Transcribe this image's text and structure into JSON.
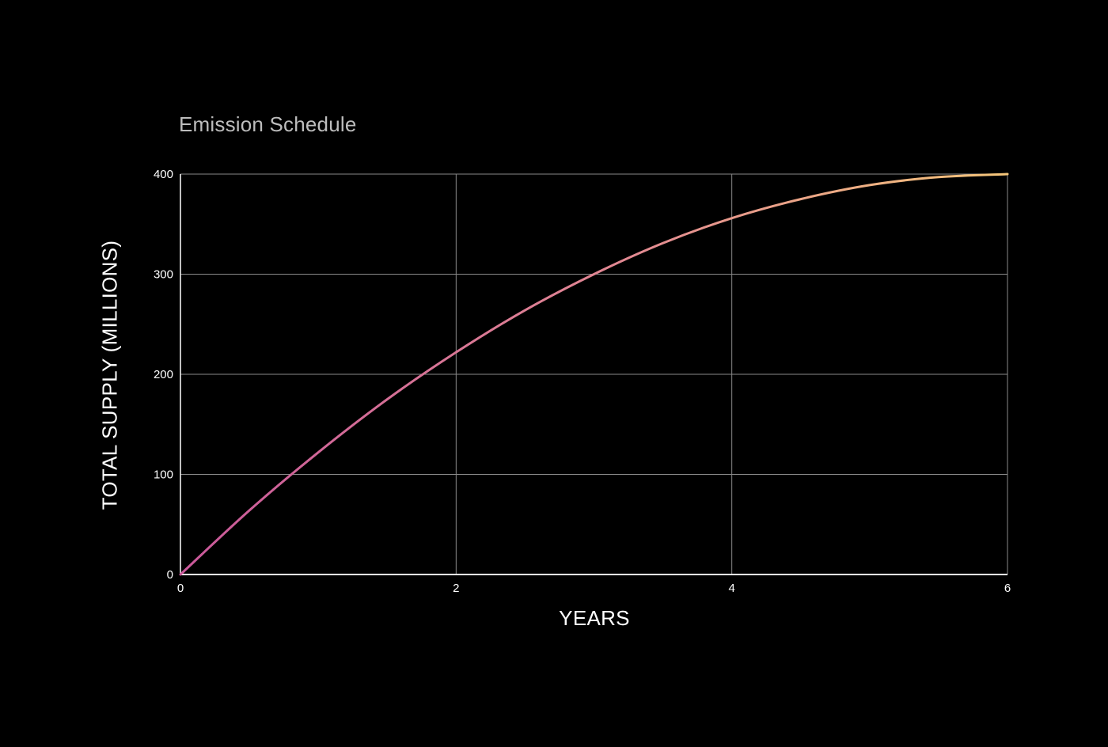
{
  "chart": {
    "title": "Emission Schedule",
    "xlabel": "YEARS",
    "ylabel": "TOTAL SUPPLY (MILLIONS)",
    "x_ticks": [
      "0",
      "2",
      "4",
      "6"
    ],
    "y_ticks": [
      "0",
      "100",
      "200",
      "300",
      "400"
    ],
    "colors": {
      "background": "#000000",
      "grid": "#8a8a8a",
      "axis": "#ffffff",
      "line_start": "#c9589a",
      "line_end": "#f5c67a",
      "title": "#bdbdbd"
    }
  },
  "chart_data": {
    "type": "line",
    "title": "Emission Schedule",
    "xlabel": "YEARS",
    "ylabel": "TOTAL SUPPLY (MILLIONS)",
    "xlim": [
      0,
      6
    ],
    "ylim": [
      0,
      400
    ],
    "x_ticks": [
      0,
      2,
      4,
      6
    ],
    "y_ticks": [
      0,
      100,
      200,
      300,
      400
    ],
    "grid": true,
    "legend": null,
    "series": [
      {
        "name": "Total Supply",
        "x": [
          0,
          0.5,
          1,
          1.5,
          2,
          2.5,
          3,
          3.5,
          4,
          4.5,
          5,
          5.5,
          6
        ],
        "values": [
          0,
          64,
          122,
          175,
          222,
          264,
          300,
          331,
          356,
          375,
          389,
          397,
          400
        ]
      }
    ]
  }
}
